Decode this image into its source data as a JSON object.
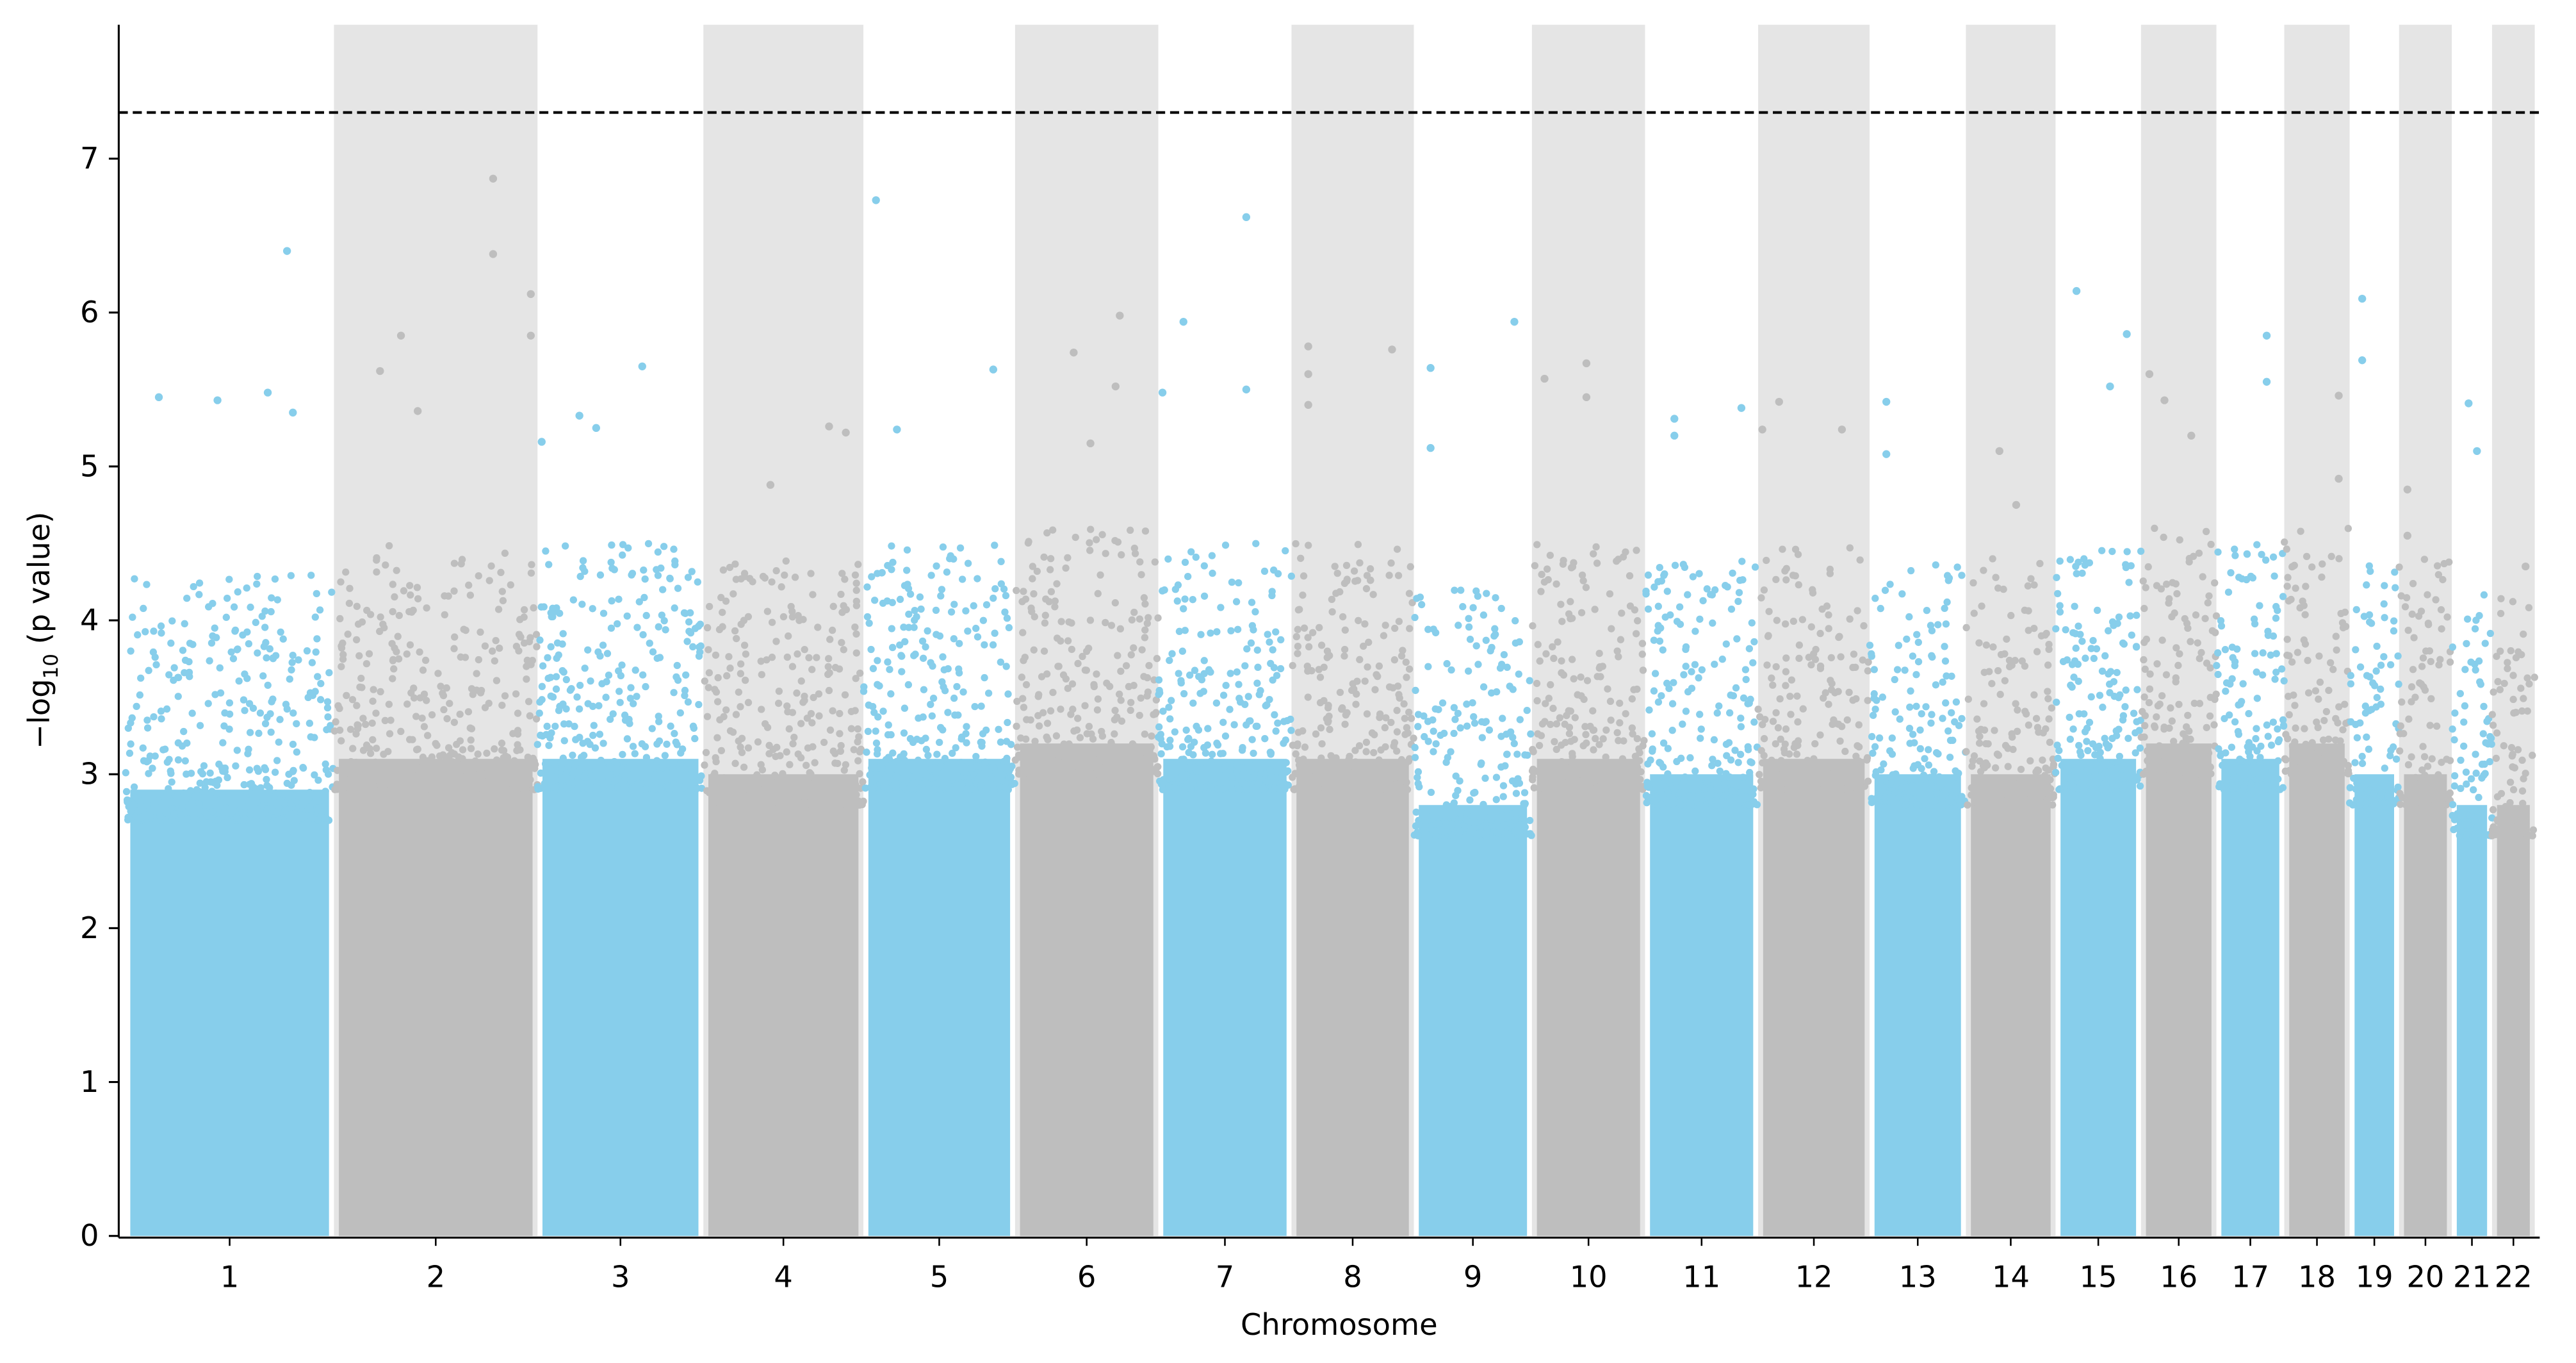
{
  "chart_data": {
    "type": "scatter",
    "subtype": "manhattan",
    "title": "",
    "xlabel": "Chromosome",
    "ylabel": "−log10 (p value)",
    "ylabel_parts": {
      "prefix": "−log",
      "sub": "10",
      "suffix": " (p value)"
    },
    "ylim": [
      0,
      7.87
    ],
    "yticks": [
      0,
      1,
      2,
      3,
      4,
      5,
      6,
      7
    ],
    "significance_threshold": 7.3,
    "colors": {
      "odd": "#87CEEB",
      "even": "#BEBEBE",
      "band": "#E5E5E5",
      "threshold": "#000000"
    },
    "chromosomes": [
      {
        "label": "1",
        "length_mb": 249,
        "dense_top": 3.1,
        "peaks": [
          [
            193,
            6.4
          ],
          [
            40,
            5.45
          ],
          [
            110,
            5.43
          ],
          [
            170,
            5.48
          ],
          [
            200,
            5.35
          ]
        ]
      },
      {
        "label": "2",
        "length_mb": 243,
        "dense_top": 3.3,
        "peaks": [
          [
            190,
            6.87
          ],
          [
            190,
            6.38
          ],
          [
            235,
            6.12
          ],
          [
            235,
            5.85
          ],
          [
            55,
            5.62
          ],
          [
            80,
            5.85
          ],
          [
            100,
            5.36
          ]
        ]
      },
      {
        "label": "3",
        "length_mb": 198,
        "dense_top": 3.3,
        "peaks": [
          [
            125,
            5.65
          ],
          [
            50,
            5.33
          ],
          [
            70,
            5.25
          ],
          [
            5,
            5.16
          ]
        ]
      },
      {
        "label": "4",
        "length_mb": 191,
        "dense_top": 3.2,
        "peaks": [
          [
            150,
            5.26
          ],
          [
            170,
            5.22
          ],
          [
            80,
            4.88
          ]
        ]
      },
      {
        "label": "5",
        "length_mb": 181,
        "dense_top": 3.3,
        "peaks": [
          [
            15,
            6.73
          ],
          [
            155,
            5.63
          ],
          [
            40,
            5.24
          ]
        ]
      },
      {
        "label": "6",
        "length_mb": 171,
        "dense_top": 3.4,
        "peaks": [
          [
            125,
            5.98
          ],
          [
            70,
            5.74
          ],
          [
            120,
            5.52
          ],
          [
            90,
            5.15
          ]
        ]
      },
      {
        "label": "7",
        "length_mb": 159,
        "dense_top": 3.3,
        "peaks": [
          [
            105,
            6.62
          ],
          [
            30,
            5.94
          ],
          [
            5,
            5.48
          ],
          [
            105,
            5.5
          ]
        ]
      },
      {
        "label": "8",
        "length_mb": 146,
        "dense_top": 3.3,
        "peaks": [
          [
            20,
            5.78
          ],
          [
            120,
            5.76
          ],
          [
            20,
            5.6
          ],
          [
            20,
            5.4
          ]
        ]
      },
      {
        "label": "9",
        "length_mb": 141,
        "dense_top": 3.0,
        "peaks": [
          [
            120,
            5.94
          ],
          [
            20,
            5.64
          ],
          [
            20,
            5.12
          ]
        ]
      },
      {
        "label": "10",
        "length_mb": 135,
        "dense_top": 3.3,
        "peaks": [
          [
            65,
            5.67
          ],
          [
            15,
            5.57
          ],
          [
            65,
            5.45
          ]
        ]
      },
      {
        "label": "11",
        "length_mb": 135,
        "dense_top": 3.2,
        "peaks": [
          [
            115,
            5.38
          ],
          [
            35,
            5.31
          ],
          [
            35,
            5.2
          ]
        ]
      },
      {
        "label": "12",
        "length_mb": 133,
        "dense_top": 3.3,
        "peaks": [
          [
            25,
            5.42
          ],
          [
            5,
            5.24
          ],
          [
            100,
            5.24
          ]
        ]
      },
      {
        "label": "13",
        "length_mb": 115,
        "dense_top": 3.2,
        "peaks": [
          [
            20,
            5.42
          ],
          [
            20,
            5.08
          ]
        ]
      },
      {
        "label": "14",
        "length_mb": 107,
        "dense_top": 3.2,
        "peaks": [
          [
            40,
            5.1
          ],
          [
            60,
            4.75
          ]
        ]
      },
      {
        "label": "15",
        "length_mb": 102,
        "dense_top": 3.3,
        "peaks": [
          [
            25,
            6.14
          ],
          [
            85,
            5.86
          ],
          [
            65,
            5.52
          ]
        ]
      },
      {
        "label": "16",
        "length_mb": 90,
        "dense_top": 3.4,
        "peaks": [
          [
            10,
            5.6
          ],
          [
            28,
            5.43
          ],
          [
            60,
            5.2
          ]
        ]
      },
      {
        "label": "17",
        "length_mb": 81,
        "dense_top": 3.3,
        "peaks": [
          [
            60,
            5.85
          ],
          [
            60,
            5.55
          ]
        ]
      },
      {
        "label": "18",
        "length_mb": 78,
        "dense_top": 3.4,
        "peaks": [
          [
            65,
            5.46
          ],
          [
            65,
            4.92
          ]
        ]
      },
      {
        "label": "19",
        "length_mb": 59,
        "dense_top": 3.2,
        "peaks": [
          [
            15,
            6.09
          ],
          [
            15,
            5.69
          ]
        ]
      },
      {
        "label": "20",
        "length_mb": 63,
        "dense_top": 3.2,
        "peaks": [
          [
            10,
            4.85
          ],
          [
            10,
            4.55
          ]
        ]
      },
      {
        "label": "21",
        "length_mb": 48,
        "dense_top": 3.0,
        "peaks": [
          [
            20,
            5.41
          ],
          [
            30,
            5.1
          ]
        ]
      },
      {
        "label": "22",
        "length_mb": 51,
        "dense_top": 3.0,
        "peaks": [
          [
            40,
            4.35
          ]
        ]
      }
    ]
  }
}
